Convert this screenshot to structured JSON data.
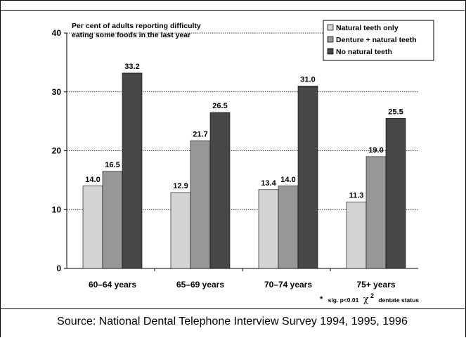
{
  "chart_data": {
    "type": "bar",
    "title": "Per cent of adults reporting difficulty eating some foods in the last year",
    "title_lines": [
      "Per cent of adults reporting difficulty",
      "eating some foods in the last year"
    ],
    "categories": [
      "60–64 years",
      "65–69 years",
      "70–74 years",
      "75+ years"
    ],
    "series": [
      {
        "name": "Natural teeth only",
        "values": [
          14.0,
          12.9,
          13.4,
          11.3
        ],
        "color": "#d4d4d4"
      },
      {
        "name": "Denture + natural teeth",
        "values": [
          16.5,
          21.7,
          14.0,
          19.0
        ],
        "color": "#979797"
      },
      {
        "name": "No natural teeth",
        "values": [
          33.2,
          26.5,
          31.0,
          25.5
        ],
        "color": "#474747"
      }
    ],
    "ylim": [
      0,
      40
    ],
    "yticks": [
      0,
      10,
      20,
      30,
      40
    ],
    "xlabel": "",
    "ylabel": "",
    "grid": true,
    "legend_position": "top-right",
    "note": {
      "star": "*",
      "text": "sig. p<0.01",
      "chi": "χ",
      "sup": "2",
      "rest": "dentate status"
    }
  },
  "source_text": "Source:  National Dental Telephone Interview Survey 1994, 1995, 1996"
}
